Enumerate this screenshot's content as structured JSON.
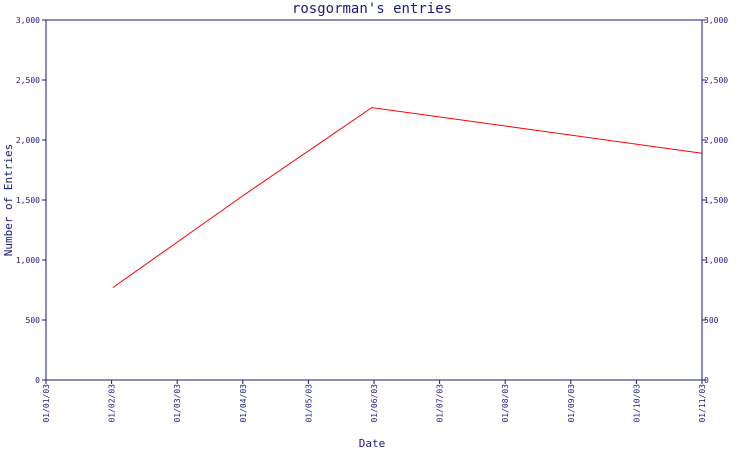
{
  "chart_data": {
    "type": "line",
    "title": "rosgorman's entries",
    "xlabel": "Date",
    "ylabel": "Number of Entries",
    "ylim": [
      0,
      3000
    ],
    "y_ticks": [
      "0",
      "500",
      "1,000",
      "1,500",
      "2,000",
      "2,500",
      "3,000"
    ],
    "y_tick_values": [
      0,
      500,
      1000,
      1500,
      2000,
      2500,
      3000
    ],
    "x_ticks": [
      "01/01/03",
      "01/02/03",
      "01/03/03",
      "01/04/03",
      "01/05/03",
      "01/06/03",
      "01/07/03",
      "01/08/03",
      "01/09/03",
      "01/10/03",
      "01/11/03"
    ],
    "grid": false,
    "colors": {
      "line": "#ff0000",
      "axis": "#1a1a80",
      "text": "#1a1a80"
    },
    "series": [
      {
        "x": [
          "01/02/03",
          "01/04/03",
          "01/06/03",
          "01/11/03"
        ],
        "values": [
          770,
          1520,
          2270,
          1890
        ]
      }
    ]
  }
}
